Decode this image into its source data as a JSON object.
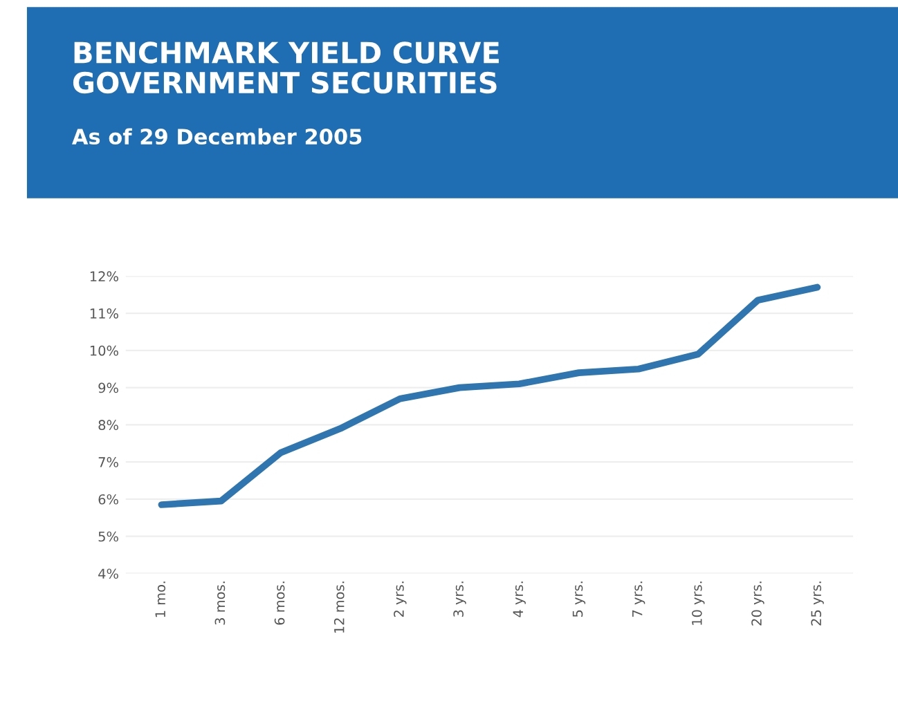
{
  "chart_data": {
    "type": "line",
    "title": "BENCHMARK YIELD CURVE\nGOVERNMENT SECURITIES",
    "subtitle": "As of 29 December 2005",
    "categories": [
      "1 mo.",
      "3 mos.",
      "6 mos.",
      "12 mos.",
      "2 yrs.",
      "3 yrs.",
      "4 yrs.",
      "5 yrs.",
      "7 yrs.",
      "10 yrs.",
      "20 yrs.",
      "25 yrs."
    ],
    "series": [
      {
        "color": "#2f75b0",
        "values": [
          5.85,
          5.95,
          7.25,
          7.9,
          8.7,
          9.0,
          9.1,
          9.4,
          9.5,
          9.9,
          11.35,
          11.7
        ]
      }
    ],
    "ylim": [
      4,
      12
    ],
    "yticks": [
      {
        "value": 4,
        "label": "4%"
      },
      {
        "value": 5,
        "label": "5%"
      },
      {
        "value": 6,
        "label": "6%"
      },
      {
        "value": 7,
        "label": "7%"
      },
      {
        "value": 8,
        "label": "8%"
      },
      {
        "value": 9,
        "label": "9%"
      },
      {
        "value": 10,
        "label": "10%"
      },
      {
        "value": 11,
        "label": "11%"
      },
      {
        "value": 12,
        "label": "12%"
      }
    ],
    "grid": "y",
    "marker": "none",
    "line_style": "solid",
    "legend": false
  }
}
